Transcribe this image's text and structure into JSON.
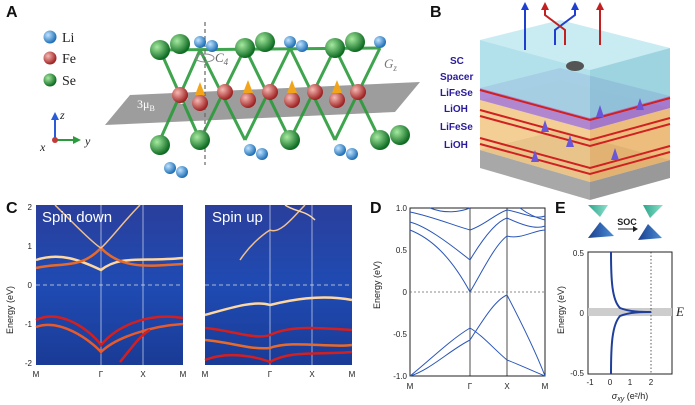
{
  "panels": {
    "A": {
      "label": "A",
      "legend": [
        {
          "name": "Li",
          "color": "#2d8fd8"
        },
        {
          "name": "Fe",
          "color": "#c23a38"
        },
        {
          "name": "Se",
          "color": "#2a9b3a"
        }
      ],
      "symmetry_label": "C",
      "symmetry_sub": "4",
      "glide_label": "G",
      "glide_sub": "z",
      "moment_label": "3μ",
      "moment_sub": "B",
      "p_label": "P",
      "axes": {
        "z": "z",
        "x": "x",
        "y": "y"
      }
    },
    "B": {
      "label": "B",
      "layers": [
        "SC",
        "Spacer",
        "LiFeSe",
        "LiOH",
        "LiFeSe",
        "LiOH"
      ]
    },
    "C": {
      "label": "C",
      "left_title": "Spin down",
      "right_title": "Spin up",
      "ylabel": "Energy (eV)",
      "yticks": [
        "2",
        "1",
        "0",
        "-1",
        "-2"
      ],
      "xticks": [
        "M",
        "Γ",
        "X",
        "M"
      ]
    },
    "D": {
      "label": "D",
      "ylabel": "Energy (eV)",
      "yticks": [
        "1.0",
        "0.5",
        "0",
        "-0.5",
        "-1.0"
      ],
      "xticks": [
        "M",
        "Γ",
        "X",
        "M"
      ]
    },
    "E": {
      "label": "E",
      "soc_label": "SOC",
      "ylabel": "Energy (eV)",
      "yticks": [
        "0.5",
        "0",
        "-0.5"
      ],
      "xticks": [
        "-1",
        "0",
        "1",
        "2"
      ],
      "xlabel": "σ",
      "xlabel_sub": "xy",
      "xlabel_unit": " (e²/h)",
      "side_label": "E"
    }
  },
  "chart_data": [
    {
      "type": "line",
      "panel": "D",
      "ylabel": "Energy (eV)",
      "ylim": [
        -1.0,
        1.0
      ],
      "xticks": [
        "M",
        "Γ",
        "X",
        "M"
      ]
    },
    {
      "type": "line",
      "panel": "E",
      "xlabel": "σxy (e²/h)",
      "ylabel": "Energy (eV)",
      "xlim": [
        -1,
        3
      ],
      "ylim": [
        -0.5,
        0.5
      ],
      "plateau": 2
    }
  ]
}
